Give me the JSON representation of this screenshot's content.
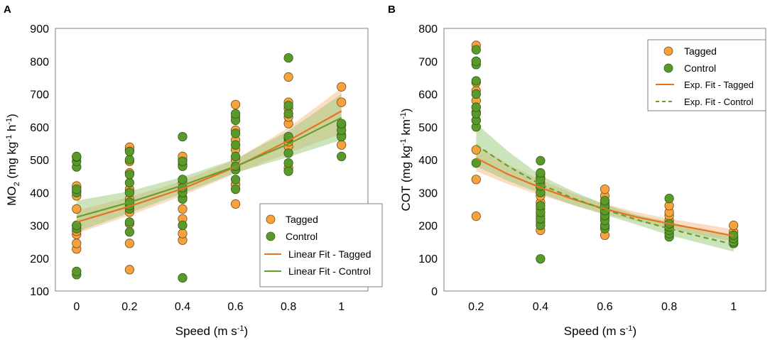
{
  "colors": {
    "tagged": "#f7a23c",
    "tagged_edge": "#6a4a1a",
    "control": "#5a9a2a",
    "control_edge": "#2f5a18",
    "fit_tagged": "#e8731f",
    "fit_control": "#6a9e2c",
    "band_tagged": "#f6b47a",
    "band_control": "#8fc46a"
  },
  "chart_data": [
    {
      "panel": "A",
      "type": "scatter",
      "xlabel": "Speed (m s",
      "xlabel_sup": "-1",
      "xlabel_end": ")",
      "ylabel_parts": [
        "MO",
        "2",
        " (mg kg",
        "-1",
        " h",
        "-1",
        ")"
      ],
      "xlim": [
        -0.08,
        1.1
      ],
      "ylim": [
        100,
        900
      ],
      "xticks": [
        0,
        0.2,
        0.4,
        0.6,
        0.8,
        1
      ],
      "xtick_labels": [
        "0",
        "0.2",
        "0.4",
        "0.6",
        "0.8",
        "1"
      ],
      "yticks": [
        100,
        200,
        300,
        400,
        500,
        600,
        700,
        800,
        900
      ],
      "ytick_labels": [
        "100",
        "200",
        "300",
        "400",
        "500",
        "600",
        "700",
        "800",
        "900"
      ],
      "legend": {
        "position": "bottom-right",
        "entries": [
          {
            "label": "Tagged",
            "kind": "marker",
            "series": "tagged"
          },
          {
            "label": "Control",
            "kind": "marker",
            "series": "control"
          },
          {
            "label": "Linear Fit - Tagged",
            "kind": "line",
            "series": "tagged"
          },
          {
            "label": "Linear Fit - Control",
            "kind": "line",
            "series": "control"
          }
        ]
      },
      "series": [
        {
          "name": "Tagged",
          "key": "tagged",
          "points": [
            [
              0,
              228
            ],
            [
              0,
              245
            ],
            [
              0,
              272
            ],
            [
              0,
              282
            ],
            [
              0,
              300
            ],
            [
              0,
              350
            ],
            [
              0,
              390
            ],
            [
              0,
              405
            ],
            [
              0,
              415
            ],
            [
              0,
              420
            ],
            [
              0.2,
              165
            ],
            [
              0.2,
              245
            ],
            [
              0.2,
              305
            ],
            [
              0.2,
              340
            ],
            [
              0.2,
              380
            ],
            [
              0.2,
              400
            ],
            [
              0.2,
              410
            ],
            [
              0.2,
              460
            ],
            [
              0.2,
              495
            ],
            [
              0.2,
              530
            ],
            [
              0.2,
              538
            ],
            [
              0.4,
              255
            ],
            [
              0.4,
              275
            ],
            [
              0.4,
              320
            ],
            [
              0.4,
              350
            ],
            [
              0.4,
              385
            ],
            [
              0.4,
              410
            ],
            [
              0.4,
              430
            ],
            [
              0.4,
              485
            ],
            [
              0.4,
              500
            ],
            [
              0.4,
              510
            ],
            [
              0.6,
              365
            ],
            [
              0.6,
              425
            ],
            [
              0.6,
              470
            ],
            [
              0.6,
              500
            ],
            [
              0.6,
              530
            ],
            [
              0.6,
              560
            ],
            [
              0.6,
              590
            ],
            [
              0.6,
              630
            ],
            [
              0.6,
              668
            ],
            [
              0.8,
              475
            ],
            [
              0.8,
              540
            ],
            [
              0.8,
              555
            ],
            [
              0.8,
              610
            ],
            [
              0.8,
              630
            ],
            [
              0.8,
              655
            ],
            [
              0.8,
              675
            ],
            [
              0.8,
              752
            ],
            [
              1,
              545
            ],
            [
              1,
              575
            ],
            [
              1,
              605
            ],
            [
              1,
              675
            ],
            [
              1,
              722
            ]
          ]
        },
        {
          "name": "Control",
          "key": "control",
          "points": [
            [
              0,
              150
            ],
            [
              0,
              160
            ],
            [
              0,
              290
            ],
            [
              0,
              300
            ],
            [
              0,
              400
            ],
            [
              0,
              410
            ],
            [
              0,
              478
            ],
            [
              0,
              495
            ],
            [
              0,
              508
            ],
            [
              0,
              510
            ],
            [
              0.2,
              280
            ],
            [
              0.2,
              310
            ],
            [
              0.2,
              350
            ],
            [
              0.2,
              360
            ],
            [
              0.2,
              370
            ],
            [
              0.2,
              400
            ],
            [
              0.2,
              430
            ],
            [
              0.2,
              455
            ],
            [
              0.2,
              500
            ],
            [
              0.2,
              525
            ],
            [
              0.4,
              140
            ],
            [
              0.4,
              300
            ],
            [
              0.4,
              380
            ],
            [
              0.4,
              400
            ],
            [
              0.4,
              415
            ],
            [
              0.4,
              440
            ],
            [
              0.4,
              480
            ],
            [
              0.4,
              495
            ],
            [
              0.4,
              570
            ],
            [
              0.6,
              410
            ],
            [
              0.6,
              440
            ],
            [
              0.6,
              470
            ],
            [
              0.6,
              480
            ],
            [
              0.6,
              510
            ],
            [
              0.6,
              545
            ],
            [
              0.6,
              580
            ],
            [
              0.6,
              620
            ],
            [
              0.6,
              640
            ],
            [
              0.8,
              465
            ],
            [
              0.8,
              490
            ],
            [
              0.8,
              520
            ],
            [
              0.8,
              565
            ],
            [
              0.8,
              570
            ],
            [
              0.8,
              640
            ],
            [
              0.8,
              665
            ],
            [
              0.8,
              810
            ],
            [
              1,
              510
            ],
            [
              1,
              570
            ],
            [
              1,
              590
            ],
            [
              1,
              610
            ]
          ]
        }
      ],
      "fits": [
        {
          "name": "Linear Fit - Tagged",
          "key": "tagged",
          "dash": false,
          "x": [
            0,
            0.2,
            0.4,
            0.6,
            0.8,
            1
          ],
          "y": [
            310,
            358,
            412,
            478,
            558,
            648
          ],
          "lower": [
            275,
            330,
            390,
            458,
            520,
            580
          ],
          "upper": [
            345,
            386,
            436,
            500,
            598,
            718
          ]
        },
        {
          "name": "Linear Fit - Control",
          "key": "control",
          "dash": false,
          "x": [
            0,
            0.2,
            0.4,
            0.6,
            0.8,
            1
          ],
          "y": [
            325,
            370,
            422,
            480,
            548,
            628
          ],
          "lower": [
            280,
            338,
            398,
            460,
            508,
            560
          ],
          "upper": [
            375,
            404,
            448,
            502,
            588,
            700
          ]
        }
      ]
    },
    {
      "panel": "B",
      "type": "scatter",
      "xlabel": "Speed (m s",
      "xlabel_sup": "-1",
      "xlabel_end": ")",
      "ylabel_parts": [
        "COT (mg kg",
        "-1",
        " km",
        "-1",
        ")"
      ],
      "xlim": [
        0.1,
        1.1
      ],
      "ylim": [
        0,
        800
      ],
      "xticks": [
        0.2,
        0.4,
        0.6,
        0.8,
        1
      ],
      "xtick_labels": [
        "0.2",
        "0.4",
        "0.6",
        "0.8",
        "1"
      ],
      "yticks": [
        0,
        100,
        200,
        300,
        400,
        500,
        600,
        700,
        800
      ],
      "ytick_labels": [
        "0",
        "100",
        "200",
        "300",
        "400",
        "500",
        "600",
        "700",
        "800"
      ],
      "legend": {
        "position": "top-right",
        "entries": [
          {
            "label": "Tagged",
            "kind": "marker",
            "series": "tagged"
          },
          {
            "label": "Control",
            "kind": "marker",
            "series": "control"
          },
          {
            "label": "Exp. Fit - Tagged",
            "kind": "line",
            "series": "tagged"
          },
          {
            "label": "Exp. Fit - Control",
            "kind": "dash",
            "series": "control"
          }
        ]
      },
      "series": [
        {
          "name": "Tagged",
          "key": "tagged",
          "points": [
            [
              0.2,
              228
            ],
            [
              0.2,
              340
            ],
            [
              0.2,
              430
            ],
            [
              0.2,
              520
            ],
            [
              0.2,
              545
            ],
            [
              0.2,
              560
            ],
            [
              0.2,
              580
            ],
            [
              0.2,
              610
            ],
            [
              0.2,
              635
            ],
            [
              0.2,
              700
            ],
            [
              0.2,
              748
            ],
            [
              0.4,
              185
            ],
            [
              0.4,
              210
            ],
            [
              0.4,
              230
            ],
            [
              0.4,
              250
            ],
            [
              0.4,
              270
            ],
            [
              0.4,
              290
            ],
            [
              0.4,
              315
            ],
            [
              0.4,
              330
            ],
            [
              0.4,
              345
            ],
            [
              0.4,
              355
            ],
            [
              0.6,
              170
            ],
            [
              0.6,
              200
            ],
            [
              0.6,
              225
            ],
            [
              0.6,
              240
            ],
            [
              0.6,
              255
            ],
            [
              0.6,
              270
            ],
            [
              0.6,
              290
            ],
            [
              0.6,
              310
            ],
            [
              0.8,
              175
            ],
            [
              0.8,
              190
            ],
            [
              0.8,
              200
            ],
            [
              0.8,
              215
            ],
            [
              0.8,
              230
            ],
            [
              0.8,
              240
            ],
            [
              0.8,
              260
            ],
            [
              1,
              145
            ],
            [
              1,
              155
            ],
            [
              1,
              165
            ],
            [
              1,
              180
            ],
            [
              1,
              200
            ]
          ]
        },
        {
          "name": "Control",
          "key": "control",
          "points": [
            [
              0.2,
              390
            ],
            [
              0.2,
              500
            ],
            [
              0.2,
              520
            ],
            [
              0.2,
              540
            ],
            [
              0.2,
              560
            ],
            [
              0.2,
              600
            ],
            [
              0.2,
              640
            ],
            [
              0.2,
              690
            ],
            [
              0.2,
              700
            ],
            [
              0.2,
              735
            ],
            [
              0.4,
              98
            ],
            [
              0.4,
              200
            ],
            [
              0.4,
              220
            ],
            [
              0.4,
              240
            ],
            [
              0.4,
              260
            ],
            [
              0.4,
              300
            ],
            [
              0.4,
              320
            ],
            [
              0.4,
              340
            ],
            [
              0.4,
              360
            ],
            [
              0.4,
              397
            ],
            [
              0.6,
              190
            ],
            [
              0.6,
              200
            ],
            [
              0.6,
              215
            ],
            [
              0.6,
              230
            ],
            [
              0.6,
              245
            ],
            [
              0.6,
              260
            ],
            [
              0.6,
              275
            ],
            [
              0.8,
              165
            ],
            [
              0.8,
              175
            ],
            [
              0.8,
              185
            ],
            [
              0.8,
              195
            ],
            [
              0.8,
              205
            ],
            [
              0.8,
              282
            ],
            [
              1,
              145
            ],
            [
              1,
              150
            ],
            [
              1,
              160
            ],
            [
              1,
              170
            ]
          ]
        }
      ],
      "fits": [
        {
          "name": "Exp. Fit - Tagged",
          "key": "tagged",
          "dash": false,
          "x": [
            0.2,
            0.3,
            0.4,
            0.5,
            0.6,
            0.7,
            0.8,
            0.9,
            1.0
          ],
          "y": [
            405,
            355,
            315,
            280,
            250,
            225,
            205,
            187,
            168
          ],
          "lower": [
            365,
            325,
            292,
            262,
            235,
            212,
            190,
            170,
            150
          ],
          "upper": [
            445,
            385,
            338,
            298,
            265,
            240,
            220,
            204,
            188
          ]
        },
        {
          "name": "Exp. Fit - Control",
          "key": "control",
          "dash": true,
          "x": [
            0.2,
            0.3,
            0.4,
            0.5,
            0.6,
            0.7,
            0.8,
            0.9,
            1.0
          ],
          "y": [
            445,
            380,
            325,
            283,
            248,
            217,
            190,
            165,
            142
          ],
          "lower": [
            380,
            335,
            298,
            262,
            232,
            202,
            170,
            145,
            120
          ],
          "upper": [
            510,
            425,
            352,
            304,
            264,
            232,
            210,
            188,
            168
          ]
        }
      ]
    }
  ]
}
